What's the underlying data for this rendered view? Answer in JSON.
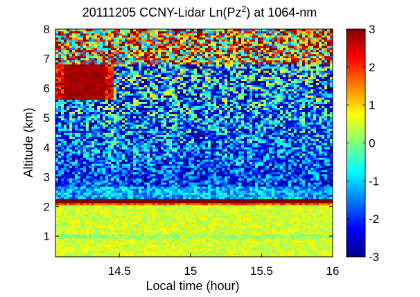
{
  "chart_data": {
    "type": "heatmap",
    "title_main": "20111205 CCNY-Lidar Ln(Pz",
    "title_sup": "2",
    "title_tail": ") at 1064-nm",
    "xlabel": "Local time (hour)",
    "ylabel": "Altitude (km)",
    "xlim": [
      14.05,
      16.0
    ],
    "ylim": [
      0.3,
      8.0
    ],
    "xticks": [
      {
        "value": 14.5,
        "label": "14.5"
      },
      {
        "value": 15.0,
        "label": "15"
      },
      {
        "value": 15.5,
        "label": "15.5"
      },
      {
        "value": 16.0,
        "label": "16"
      }
    ],
    "yticks": [
      {
        "value": 1,
        "label": "1"
      },
      {
        "value": 2,
        "label": "2"
      },
      {
        "value": 3,
        "label": "3"
      },
      {
        "value": 4,
        "label": "4"
      },
      {
        "value": 5,
        "label": "5"
      },
      {
        "value": 6,
        "label": "6"
      },
      {
        "value": 7,
        "label": "7"
      },
      {
        "value": 8,
        "label": "8"
      }
    ],
    "colorbar": {
      "range": [
        -3,
        3
      ],
      "ticks": [
        {
          "value": 3,
          "label": "3"
        },
        {
          "value": 2,
          "label": "2"
        },
        {
          "value": 1,
          "label": "1"
        },
        {
          "value": 0,
          "label": "0"
        },
        {
          "value": -1,
          "label": "-1"
        },
        {
          "value": -2,
          "label": "-2"
        },
        {
          "value": -3,
          "label": "-3"
        }
      ]
    },
    "colormap": [
      "#00008f",
      "#0000ff",
      "#00ffff",
      "#ffff00",
      "#ff0000",
      "#800000"
    ],
    "features": {
      "boundary_layer_value": 0.5,
      "pbl_top_altitude_km": 2.2,
      "pbl_top_value": 3,
      "free_troposphere_value": -2,
      "upper_noise_altitude_km": 6.8,
      "cloud": {
        "time_start": 14.05,
        "time_end": 14.45,
        "alt_low_km": 5.6,
        "alt_high_km": 6.8,
        "value": 3
      }
    }
  }
}
